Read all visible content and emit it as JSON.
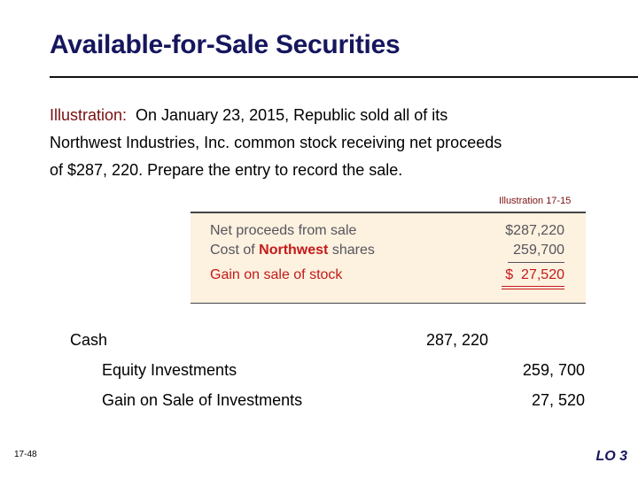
{
  "slide": {
    "title": "Available-for-Sale Securities",
    "illustration_lead": "Illustration:",
    "line1": "  On January 23, 2015, Republic sold all of its",
    "line2": "Northwest Industries, Inc. common stock receiving net proceeds",
    "line3": "of $287, 220. Prepare the entry to record the sale.",
    "illustration_label": "Illustration 17-15",
    "page_number": "17-48",
    "learning_objective": "LO 3"
  },
  "computation": {
    "row1_label": "Net proceeds from sale",
    "row1_value": "$287,220",
    "row2_prefix": "Cost of ",
    "row2_bold": "Northwest",
    "row2_suffix": " shares",
    "row2_value": "259,700",
    "row3_label": "Gain on sale of stock",
    "row3_value": "$  27,520"
  },
  "journal_entry": {
    "debit_account": "Cash",
    "debit_amount": "287, 220",
    "credit1_account": "Equity Investments",
    "credit1_amount": "259, 700",
    "credit2_account": "Gain on Sale of Investments",
    "credit2_amount": "27, 520"
  },
  "colors": {
    "title": "#16165e",
    "lead": "#7a1010",
    "table_bg": "#fdf1df",
    "table_text": "#55555d",
    "accent_red": "#c31a1a"
  }
}
